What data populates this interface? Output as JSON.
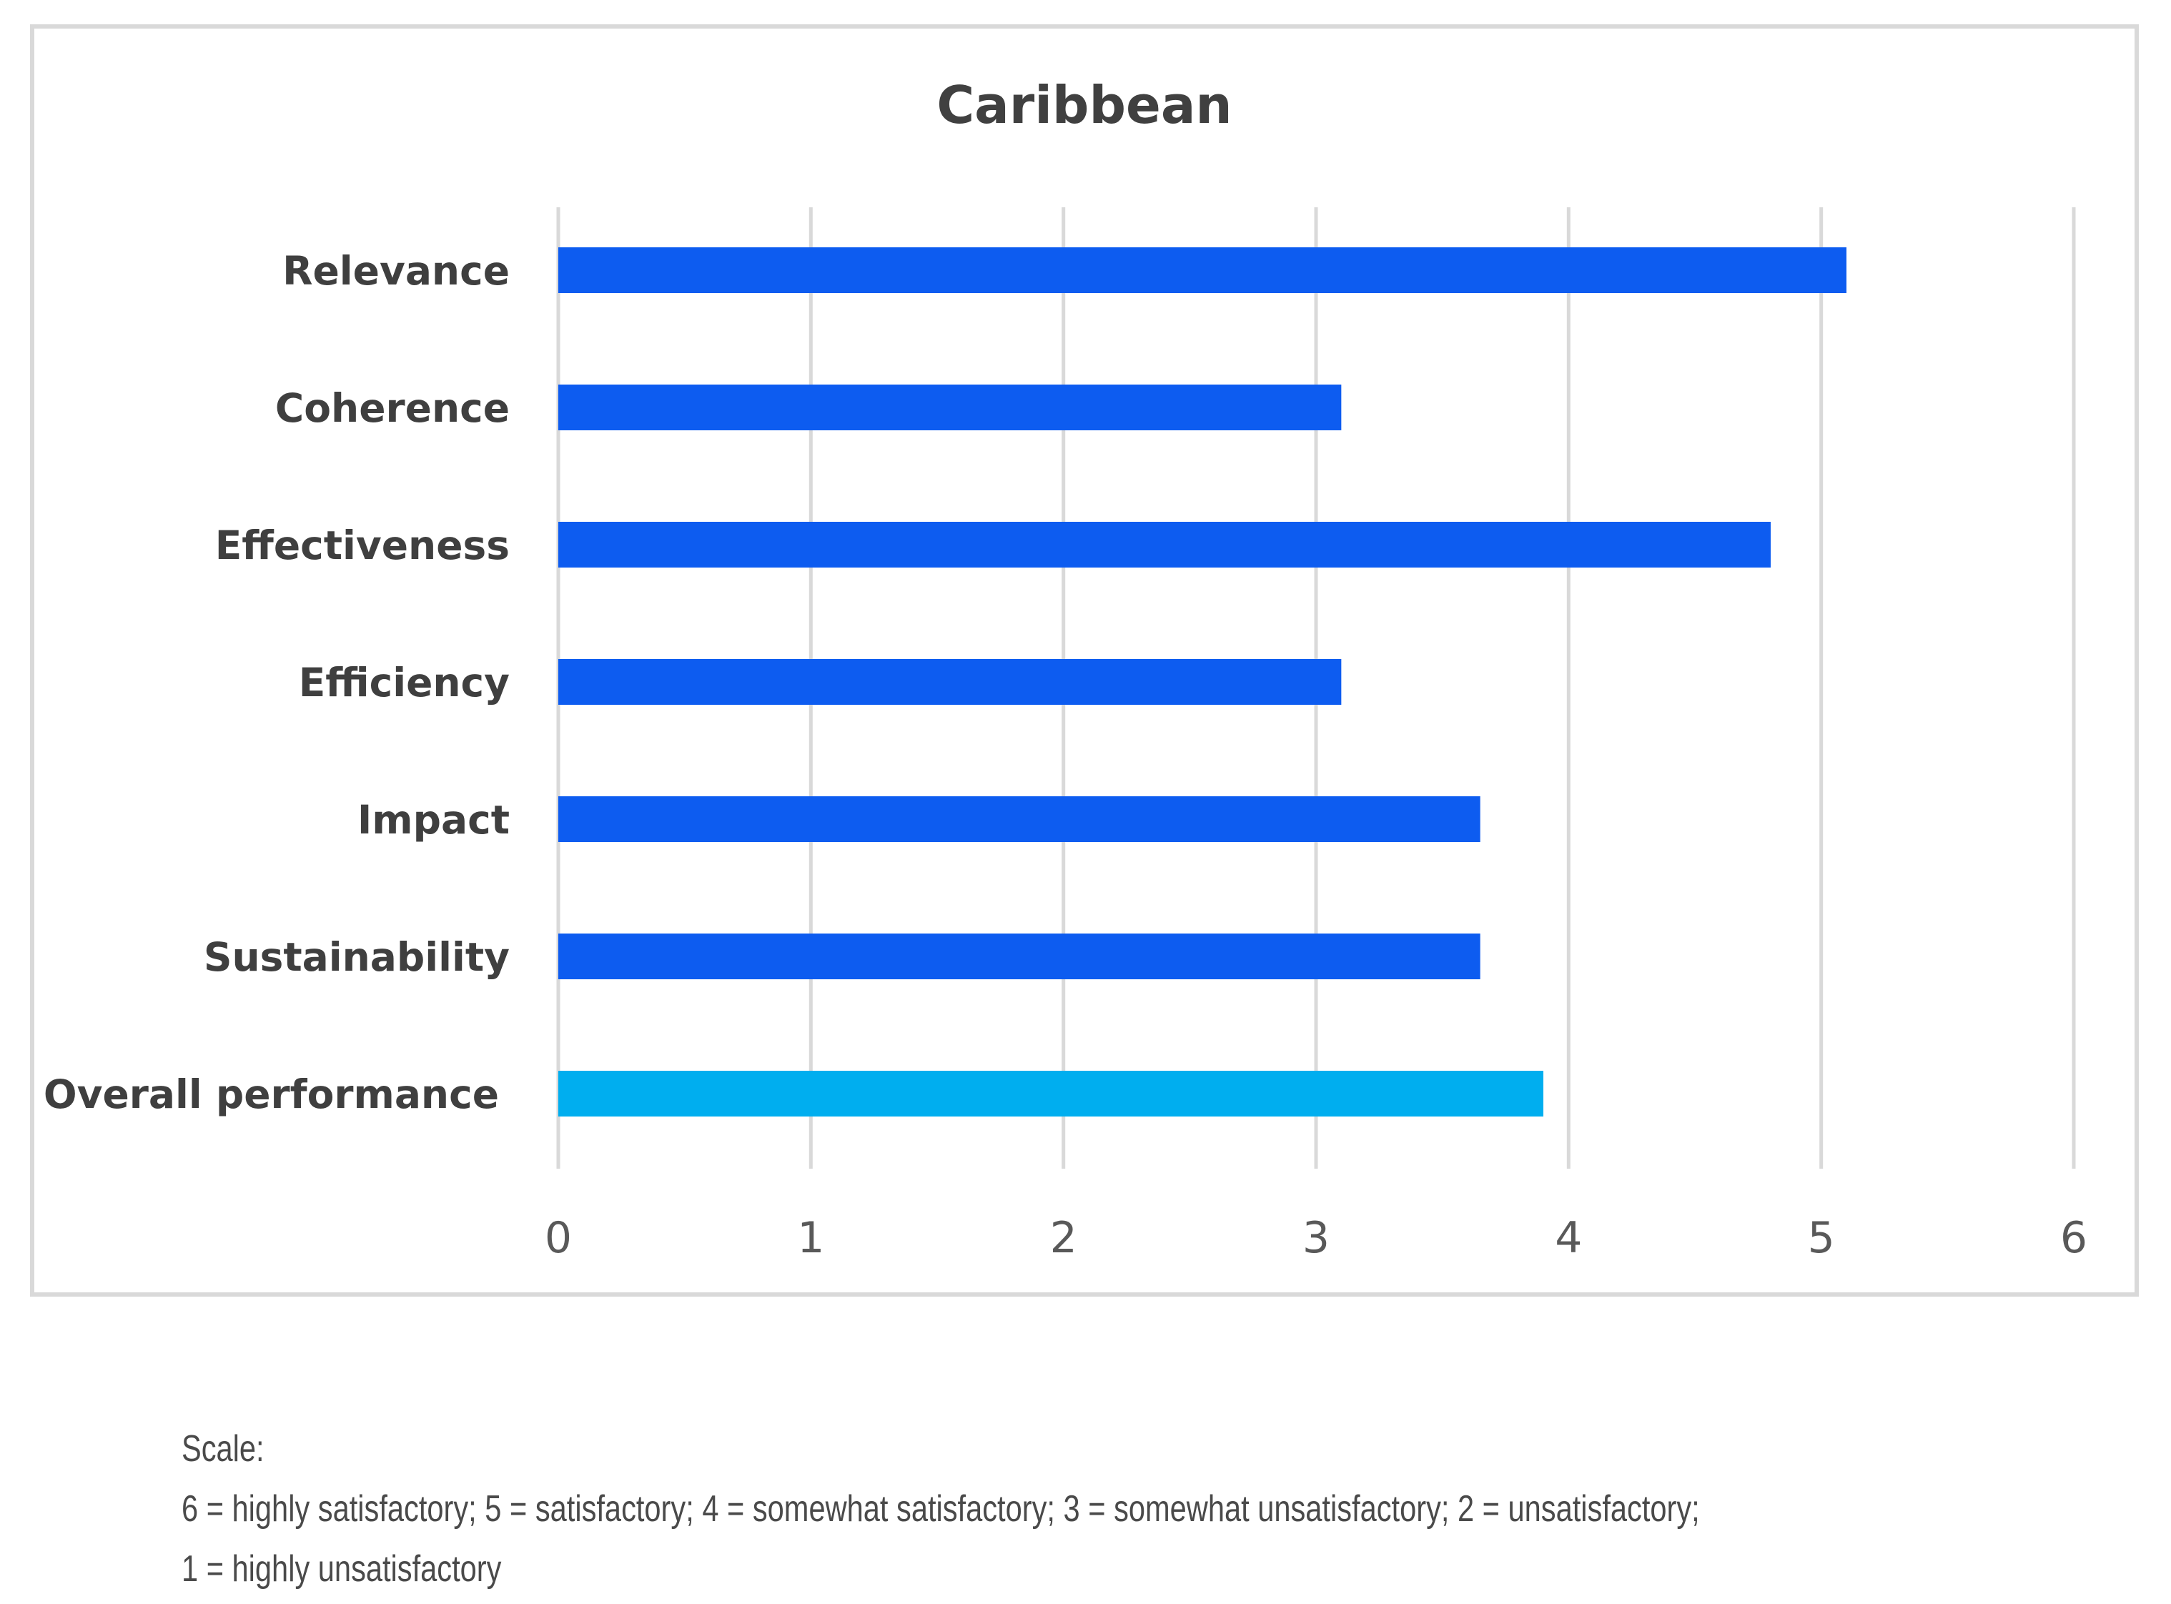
{
  "chart_data": {
    "type": "bar",
    "orientation": "horizontal",
    "title": "Caribbean",
    "categories": [
      "Relevance",
      "Coherence",
      "Effectiveness",
      "Efficiency",
      "Impact",
      "Sustainability",
      "Overall performance"
    ],
    "values": [
      5.1,
      3.1,
      4.8,
      3.1,
      3.65,
      3.65,
      3.9
    ],
    "xlim": [
      0,
      6
    ],
    "xticks": [
      "0",
      "1",
      "2",
      "3",
      "4",
      "5",
      "6"
    ],
    "xlabel": "",
    "ylabel": "",
    "grid": true,
    "colors": {
      "bar": "#0d5cf0",
      "highlight": "#00aeef",
      "grid": "#d9d9d9"
    },
    "highlight_category": "Overall performance"
  },
  "note": {
    "line1": "Scale:",
    "line2": "6 = highly satisfactory; 5 = satisfactory; 4 = somewhat satisfactory; 3 = somewhat unsatisfactory; 2 = unsatisfactory;",
    "line3": "1 = highly unsatisfactory"
  }
}
